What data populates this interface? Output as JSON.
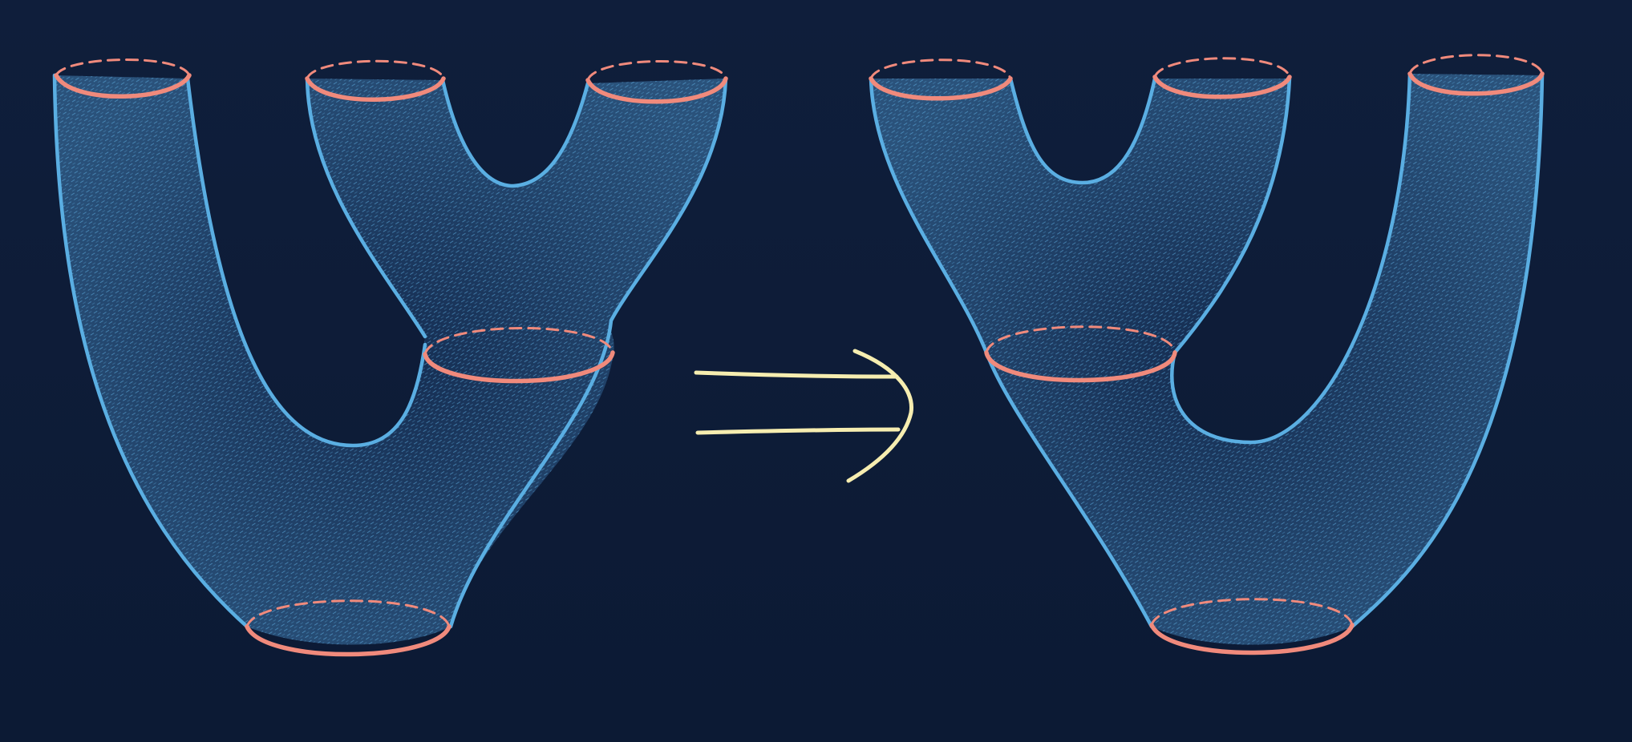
{
  "figure": {
    "description_free": true,
    "colors": {
      "background": "#0f1e3b",
      "background_bottom": "#0c1a34",
      "surface_fill": "#11264a",
      "surface_hatch": "#5fb0e4",
      "surface_edge": "#5aaee2",
      "boundary_circle": "#f08a7c",
      "arrow": "#f6edb0"
    },
    "left_cobordism": {
      "top_boundary_circles": 3,
      "bottom_boundary_circles": 1,
      "internal_cut_circles": 1
    },
    "right_cobordism": {
      "top_boundary_circles": 3,
      "bottom_boundary_circles": 1,
      "internal_cut_circles": 1
    },
    "connector": {
      "icon": "implies-double-arrow-icon"
    }
  }
}
